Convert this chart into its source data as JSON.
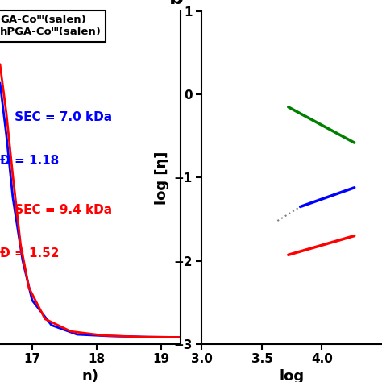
{
  "panel_b": {
    "ylabel": "log [η]",
    "xlabel": "log",
    "ylim": [
      -3,
      1
    ],
    "xlim": [
      3.0,
      4.5
    ],
    "yticks": [
      -3,
      -2,
      -1,
      0,
      1
    ],
    "xticks": [
      3.0,
      3.5,
      4.0
    ],
    "label": "b",
    "green_line": {
      "x": [
        3.72,
        4.27
      ],
      "y": [
        -0.15,
        -0.58
      ]
    },
    "blue_line": {
      "x": [
        3.82,
        4.27
      ],
      "y": [
        -1.35,
        -1.12
      ]
    },
    "red_line": {
      "x": [
        3.72,
        4.27
      ],
      "y": [
        -1.93,
        -1.7
      ]
    },
    "dotted_line": {
      "x": [
        3.63,
        3.82
      ],
      "y": [
        -1.52,
        -1.35
      ]
    }
  },
  "panel_a": {
    "xlabel": "n)",
    "xlim": [
      16.5,
      19.3
    ],
    "xticks": [
      17,
      18,
      19
    ],
    "legend_text": "GA-Coᴵᴵᴵ(salen)\nhPGA-Coᴵᴵᴵ(salen)",
    "mn_sec_blue": "SEC = 7.0 kDa",
    "d_blue": "1.18",
    "mn_sec_red": "SEC = 9.4 kDa",
    "d_red": "1.52"
  },
  "background_color": "#ffffff"
}
